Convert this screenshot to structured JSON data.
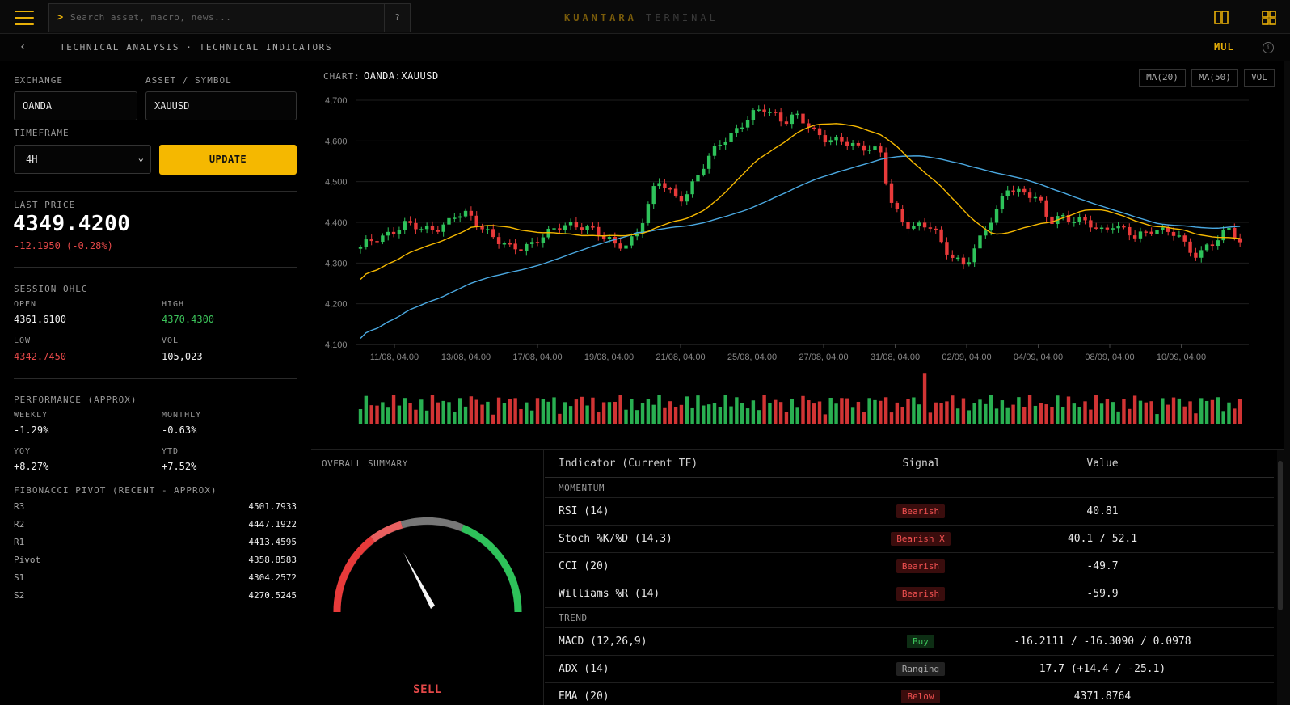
{
  "topbar": {
    "search_prompt": ">",
    "search_placeholder": "Search asset, macro, news...",
    "help_label": "?",
    "brand_primary": "KUANTARA",
    "brand_secondary": "TERMINAL"
  },
  "subbar": {
    "back_label": "‹",
    "breadcrumb": "TECHNICAL ANALYSIS · TECHNICAL INDICATORS",
    "mode_label": "MUL",
    "info_label": "i"
  },
  "form": {
    "exchange_label": "EXCHANGE",
    "exchange_value": "OANDA",
    "symbol_label": "ASSET / SYMBOL",
    "symbol_value": "XAUUSD",
    "timeframe_label": "TIMEFRAME",
    "timeframe_value": "4H",
    "update_label": "UPDATE"
  },
  "price": {
    "label": "LAST PRICE",
    "value": "4349.4200",
    "change": "-12.1950 (-0.28%)"
  },
  "ohlc": {
    "title": "SESSION OHLC",
    "open_label": "OPEN",
    "open": "4361.6100",
    "high_label": "HIGH",
    "high": "4370.4300",
    "low_label": "LOW",
    "low": "4342.7450",
    "vol_label": "VOL",
    "vol": "105,023"
  },
  "performance": {
    "title": "PERFORMANCE (APPROX)",
    "weekly_label": "WEEKLY",
    "weekly": "-1.29%",
    "monthly_label": "MONTHLY",
    "monthly": "-0.63%",
    "yoy_label": "YOY",
    "yoy": "+8.27%",
    "ytd_label": "YTD",
    "ytd": "+7.52%"
  },
  "pivots": {
    "title": "FIBONACCI PIVOT (RECENT - APPROX)",
    "rows": [
      {
        "label": "R3",
        "value": "4501.7933"
      },
      {
        "label": "R2",
        "value": "4447.1922"
      },
      {
        "label": "R1",
        "value": "4413.4595"
      },
      {
        "label": "Pivot",
        "value": "4358.8583"
      },
      {
        "label": "S1",
        "value": "4304.2572"
      },
      {
        "label": "S2",
        "value": "4270.5245"
      }
    ]
  },
  "chart": {
    "label": "CHART:",
    "symbol": "OANDA:XAUUSD",
    "chips": [
      "MA(20)",
      "MA(50)",
      "VOL"
    ]
  },
  "chart_data": {
    "type": "candlestick",
    "ylim": [
      4100,
      4700
    ],
    "y_ticks": [
      "4,700",
      "4,600",
      "4,500",
      "4,400",
      "4,300",
      "4,200",
      "4,100"
    ],
    "x_ticks": [
      "11/08, 04.00",
      "13/08, 04.00",
      "17/08, 04.00",
      "19/08, 04.00",
      "21/08, 04.00",
      "25/08, 04.00",
      "27/08, 04.00",
      "31/08, 04.00",
      "02/09, 04.00",
      "04/09, 04.00",
      "08/09, 04.00",
      "10/09, 04.00"
    ],
    "series": [
      {
        "name": "MA(20)",
        "color": "#f5b800"
      },
      {
        "name": "MA(50)",
        "color": "#4aa8e0"
      }
    ],
    "close_path": [
      4340,
      4350,
      4360,
      4380,
      4400,
      4390,
      4375,
      4385,
      4400,
      4420,
      4415,
      4395,
      4380,
      4360,
      4335,
      4330,
      4345,
      4370,
      4380,
      4385,
      4390,
      4395,
      4385,
      4360,
      4340,
      4345,
      4375,
      4430,
      4500,
      4480,
      4460,
      4480,
      4520,
      4560,
      4600,
      4620,
      4640,
      4660,
      4680,
      4670,
      4650,
      4660,
      4640,
      4620,
      4610,
      4600,
      4590,
      4580,
      4590,
      4580,
      4450,
      4400,
      4390,
      4400,
      4390,
      4330,
      4310,
      4300,
      4340,
      4380,
      4420,
      4490,
      4480,
      4470,
      4450,
      4400,
      4420,
      4410,
      4400,
      4390,
      4380,
      4400,
      4380,
      4360,
      4370,
      4390,
      4380,
      4370,
      4330,
      4320,
      4350,
      4360,
      4380,
      4349
    ]
  },
  "summary": {
    "title": "OVERALL SUMMARY",
    "signal": "SELL",
    "gauge_value": 0.3
  },
  "indicators": {
    "headers": {
      "name": "Indicator (Current TF)",
      "signal": "Signal",
      "value": "Value"
    },
    "momentum_label": "MOMENTUM",
    "trend_label": "TREND",
    "momentum": [
      {
        "name": "RSI (14)",
        "signal": "Bearish",
        "value": "40.81"
      },
      {
        "name": "Stoch %K/%D (14,3)",
        "signal": "Bearish X",
        "value": "40.1 / 52.1"
      },
      {
        "name": "CCI (20)",
        "signal": "Bearish",
        "value": "-49.7"
      },
      {
        "name": "Williams %R (14)",
        "signal": "Bearish",
        "value": "-59.9"
      }
    ],
    "trend": [
      {
        "name": "MACD (12,26,9)",
        "signal": "Buy",
        "value": "-16.2111 / -16.3090 / 0.0978"
      },
      {
        "name": "ADX (14)",
        "signal": "Ranging",
        "value": "17.7 (+14.4 / -25.1)"
      },
      {
        "name": "EMA (20)",
        "signal": "Below",
        "value": "4371.8764"
      }
    ]
  }
}
